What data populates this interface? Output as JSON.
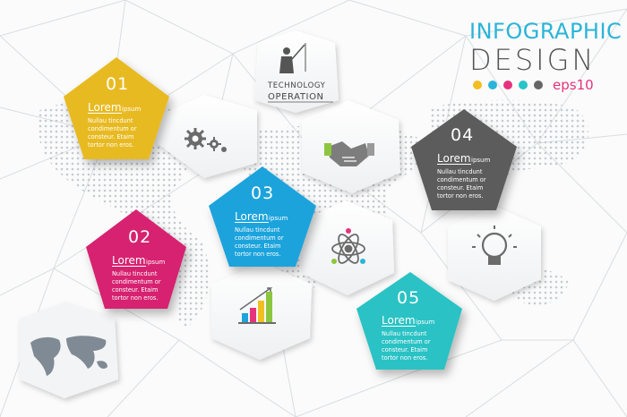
{
  "heading": {
    "line1": "INFOGRAPHIC",
    "line2": "DESIGN",
    "version": "eps10"
  },
  "palette_dots": [
    "#f2bf22",
    "#2ab4d8",
    "#e6327c",
    "#28c4c6",
    "#666666"
  ],
  "icon_card": {
    "line1": "TECHNOLOGY",
    "line2": "OPERATION"
  },
  "steps": [
    {
      "number": "01",
      "title": "Lorem",
      "subtitle": "ipsum",
      "lines": [
        "Nullau tincdunt",
        "condimentum or",
        "consteur. Etaim",
        "tortor non eros."
      ],
      "color": "#e8ba22"
    },
    {
      "number": "02",
      "title": "Lorem",
      "subtitle": "ipsum",
      "lines": [
        "Nullau tincdunt",
        "condimentum or",
        "consteur. Etaim",
        "tortor non eros."
      ],
      "color": "#d6246f"
    },
    {
      "number": "03",
      "title": "Lorem",
      "subtitle": "ipsum",
      "lines": [
        "Nullau tincdunt",
        "condimentum or",
        "consteur. Etaim",
        "tortor non eros."
      ],
      "color": "#1fa3dc"
    },
    {
      "number": "04",
      "title": "Lorem",
      "subtitle": "ipsum",
      "lines": [
        "Nullau tincdunt",
        "condimentum or",
        "consteur. Etaim",
        "tortor non eros."
      ],
      "color": "#5c5c5c"
    },
    {
      "number": "05",
      "title": "Lorem",
      "subtitle": "ipsum",
      "lines": [
        "Nullau tincdunt",
        "condimentum or",
        "consteur. Etaim",
        "tortor non eros."
      ],
      "color": "#2cc2c4"
    }
  ],
  "icons": [
    "gears-icon",
    "handshake-icon",
    "atom-people-icon",
    "lightbulb-icon",
    "bar-chart-icon",
    "presenter-icon",
    "world-map-icon"
  ]
}
